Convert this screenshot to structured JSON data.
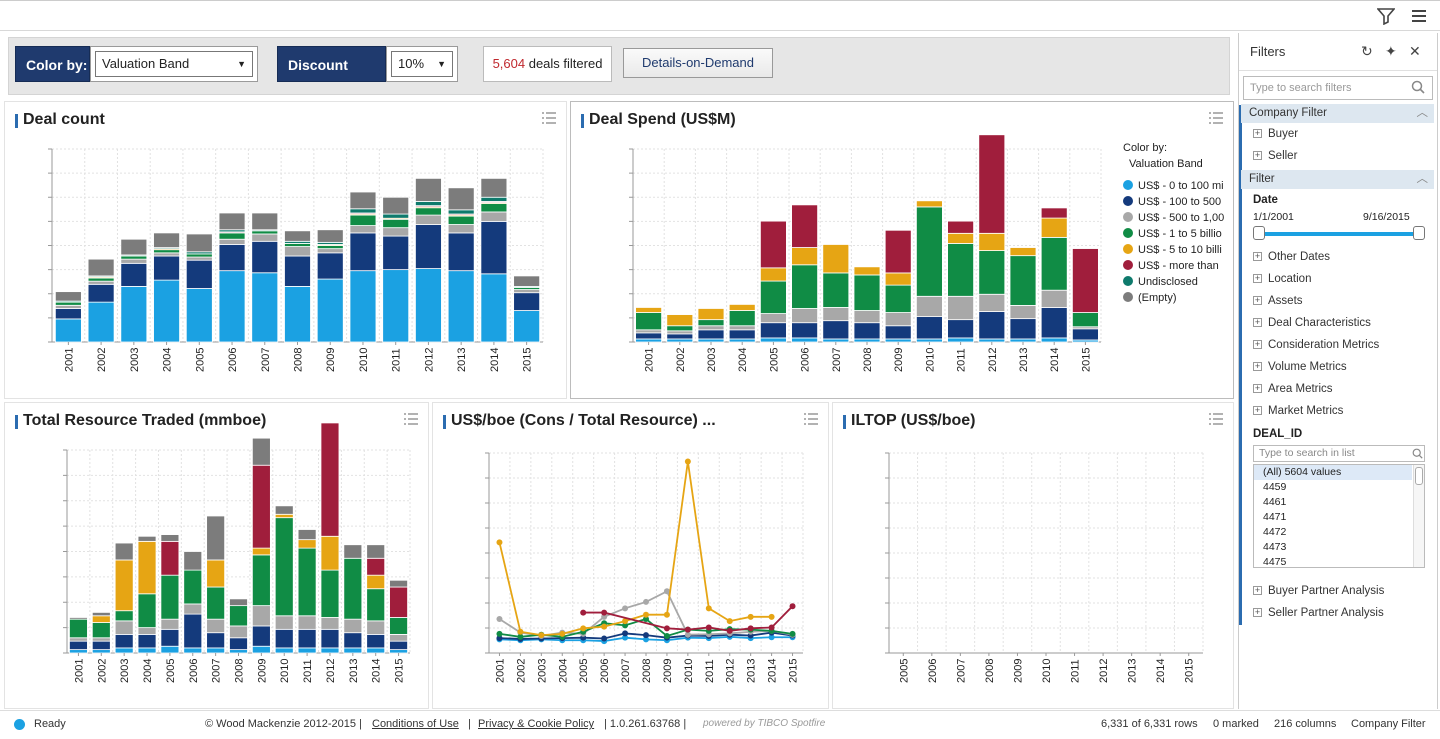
{
  "toolbar": {
    "filter_icon": "funnel-icon",
    "menu_icon": "hamburger-icon"
  },
  "controls": {
    "color_by_label": "Color by:",
    "color_by_value": "Valuation Band",
    "discount_label": "Discount Rate:",
    "discount_value": "10%",
    "deals_count": "5,604",
    "deals_text": " deals filtered",
    "details_button": "Details-on-Demand"
  },
  "colors": {
    "band0": "#1ba1e2",
    "band1": "#143a7c",
    "band2": "#a8a8a8",
    "band3": "#108c45",
    "band4": "#e6a514",
    "band5": "#a01e3c",
    "band6": "#0e7a6c",
    "band7": "#7c7c7c"
  },
  "panels": {
    "deal_count": {
      "title": "Deal count"
    },
    "deal_spend": {
      "title": "Deal Spend (US$M)"
    },
    "resource": {
      "title": "Total Resource Traded (mmboe)"
    },
    "usboe": {
      "title": "US$/boe (Cons / Total Resource) ..."
    },
    "iltop": {
      "title": "ILTOP (US$/boe)"
    }
  },
  "legend": {
    "title": "Color by:",
    "subtitle": "Valuation Band",
    "items": [
      "US$ - 0 to 100 mi",
      "US$ - 100 to 500",
      "US$ - 500 to 1,00",
      "US$ - 1 to 5 billio",
      "US$ - 5 to 10 billi",
      "US$ - more than",
      "Undisclosed",
      "(Empty)"
    ]
  },
  "chart_data": [
    {
      "type": "bar",
      "title": "Deal count",
      "stacked": true,
      "categories": [
        "2001",
        "2002",
        "2003",
        "2004",
        "2005",
        "2006",
        "2007",
        "2008",
        "2009",
        "2010",
        "2011",
        "2012",
        "2013",
        "2014",
        "2015"
      ],
      "series": [
        {
          "name": "US$ - 0 to 100 mi",
          "values": [
            22,
            38,
            53,
            59,
            51,
            68,
            66,
            53,
            60,
            68,
            69,
            70,
            68,
            65,
            30
          ]
        },
        {
          "name": "US$ - 100 to 500",
          "values": [
            10,
            17,
            22,
            23,
            27,
            25,
            30,
            29,
            25,
            36,
            32,
            42,
            36,
            50,
            17
          ]
        },
        {
          "name": "US$ - 500 to 1,00",
          "values": [
            3,
            3,
            4,
            3,
            3,
            5,
            7,
            9,
            4,
            7,
            8,
            9,
            8,
            9,
            3
          ]
        },
        {
          "name": "US$ - 1 to 5 billio",
          "values": [
            3,
            3,
            3,
            3,
            3,
            6,
            3,
            3,
            3,
            10,
            8,
            7,
            8,
            8,
            2
          ]
        },
        {
          "name": "US$ - 5 to 10 billi",
          "values": [
            0,
            1,
            0,
            1,
            0,
            0,
            0,
            0,
            1,
            1,
            1,
            1,
            1,
            1,
            0
          ]
        },
        {
          "name": "US$ - more than",
          "values": [
            0,
            0,
            0,
            0,
            0,
            1,
            0,
            0,
            0,
            1,
            0,
            1,
            1,
            1,
            0
          ]
        },
        {
          "name": "Undisclosed",
          "values": [
            1,
            1,
            1,
            1,
            2,
            2,
            1,
            2,
            2,
            4,
            4,
            4,
            4,
            4,
            1
          ]
        },
        {
          "name": "(Empty)",
          "values": [
            9,
            16,
            15,
            14,
            17,
            16,
            16,
            10,
            12,
            16,
            16,
            22,
            21,
            18,
            10
          ]
        }
      ]
    },
    {
      "type": "bar",
      "title": "Deal Spend (US$M)",
      "stacked": true,
      "categories": [
        "2001",
        "2002",
        "2003",
        "2004",
        "2005",
        "2006",
        "2007",
        "2008",
        "2009",
        "2010",
        "2011",
        "2012",
        "2013",
        "2014",
        "2015"
      ],
      "series": [
        {
          "name": "US$ - 0 to 100 mi",
          "values": [
            3,
            3,
            3,
            3,
            4,
            4,
            3,
            3,
            3,
            3,
            4,
            3,
            3,
            4,
            2
          ]
        },
        {
          "name": "US$ - 100 to 500",
          "values": [
            6,
            5,
            9,
            9,
            15,
            15,
            18,
            16,
            13,
            22,
            18,
            27,
            20,
            30,
            11
          ]
        },
        {
          "name": "US$ - 500 to 1,00",
          "values": [
            3,
            3,
            4,
            4,
            9,
            14,
            13,
            12,
            13,
            20,
            23,
            17,
            13,
            17,
            2
          ]
        },
        {
          "name": "US$ - 1 to 5 billio",
          "values": [
            17,
            5,
            6,
            15,
            32,
            43,
            34,
            35,
            27,
            88,
            52,
            43,
            49,
            52,
            14
          ]
        },
        {
          "name": "US$ - 5 to 10 billi",
          "values": [
            5,
            11,
            11,
            6,
            13,
            17,
            28,
            8,
            12,
            6,
            10,
            17,
            8,
            19,
            0
          ]
        },
        {
          "name": "US$ - more than",
          "values": [
            0,
            0,
            0,
            0,
            46,
            42,
            0,
            0,
            42,
            0,
            12,
            97,
            0,
            10,
            63
          ]
        },
        {
          "name": "Undisclosed",
          "values": [
            0,
            0,
            0,
            0,
            0,
            0,
            0,
            0,
            0,
            0,
            0,
            0,
            0,
            0,
            0
          ]
        },
        {
          "name": "(Empty)",
          "values": [
            0,
            0,
            0,
            0,
            0,
            0,
            0,
            0,
            0,
            0,
            0,
            0,
            0,
            0,
            0
          ]
        }
      ]
    },
    {
      "type": "bar",
      "title": "Total Resource Traded (mmboe)",
      "stacked": true,
      "categories": [
        "2001",
        "2002",
        "2003",
        "2004",
        "2005",
        "2006",
        "2007",
        "2008",
        "2009",
        "2010",
        "2011",
        "2012",
        "2013",
        "2014",
        "2015"
      ],
      "series": [
        {
          "name": "US$ - 0 to 100 mi",
          "values": [
            2,
            2,
            3,
            3,
            4,
            3,
            3,
            2,
            4,
            3,
            3,
            3,
            3,
            3,
            2
          ]
        },
        {
          "name": "US$ - 100 to 500",
          "values": [
            5,
            5,
            8,
            8,
            10,
            20,
            9,
            7,
            12,
            11,
            11,
            11,
            9,
            8,
            5
          ]
        },
        {
          "name": "US$ - 500 to 1,00",
          "values": [
            2,
            2,
            8,
            4,
            6,
            6,
            8,
            7,
            12,
            8,
            8,
            7,
            8,
            8,
            4
          ]
        },
        {
          "name": "US$ - 1 to 5 billio",
          "values": [
            11,
            9,
            6,
            20,
            26,
            20,
            19,
            12,
            30,
            58,
            40,
            28,
            36,
            19,
            10
          ]
        },
        {
          "name": "US$ - 5 to 10 billi",
          "values": [
            0,
            4,
            30,
            31,
            0,
            0,
            16,
            0,
            4,
            2,
            5,
            20,
            0,
            8,
            0
          ]
        },
        {
          "name": "US$ - more than",
          "values": [
            0,
            0,
            0,
            0,
            20,
            0,
            0,
            0,
            49,
            0,
            0,
            67,
            0,
            10,
            18
          ]
        },
        {
          "name": "Undisclosed",
          "values": [
            0,
            0,
            0,
            0,
            0,
            0,
            0,
            0,
            0,
            0,
            0,
            0,
            0,
            0,
            0
          ]
        },
        {
          "name": "(Empty)",
          "values": [
            1,
            2,
            10,
            3,
            4,
            11,
            26,
            4,
            16,
            5,
            6,
            0,
            8,
            8,
            4
          ]
        }
      ]
    },
    {
      "type": "line",
      "title": "US$/boe (Cons / Total Resource) ...",
      "x": [
        "2001",
        "2002",
        "2003",
        "2004",
        "2005",
        "2006",
        "2007",
        "2008",
        "2009",
        "2010",
        "2011",
        "2012",
        "2013",
        "2014",
        "2015"
      ],
      "series": [
        {
          "name": "US$ - 0 to 100 mi",
          "values": [
            3.2,
            3.0,
            3.2,
            3.0,
            3.0,
            2.8,
            3.6,
            3.2,
            3.0,
            3.6,
            3.5,
            3.8,
            3.5,
            3.7,
            3.7
          ]
        },
        {
          "name": "US$ - 100 to 500",
          "values": [
            3.5,
            3.3,
            3.4,
            3.5,
            3.6,
            3.4,
            4.6,
            4.2,
            3.6,
            4.1,
            4.0,
            4.3,
            4.1,
            4.8,
            4.1
          ]
        },
        {
          "name": "US$ - 500 to 1,00",
          "values": [
            8.0,
            4.8,
            4.0,
            4.8,
            4.5,
            8.5,
            10.5,
            12.0,
            14.5,
            4.3,
            4.4,
            4.6,
            5.0,
            5.2,
            4.3
          ]
        },
        {
          "name": "US$ - 1 to 5 billio",
          "values": [
            4.5,
            3.8,
            4.3,
            3.8,
            5.0,
            7.0,
            6.5,
            8.0,
            4.0,
            5.5,
            5.2,
            5.6,
            5.5,
            5.2,
            4.5
          ]
        },
        {
          "name": "US$ - 5 to 10 billi",
          "values": [
            26.0,
            5.0,
            4.2,
            4.5,
            5.8,
            6.2,
            7.5,
            9.0,
            9.0,
            45.0,
            10.5,
            7.5,
            8.5,
            8.5,
            0
          ]
        },
        {
          "name": "US$ - more than",
          "values": [
            0,
            0,
            0,
            0,
            9.5,
            9.5,
            0,
            0,
            5.8,
            5.5,
            6.0,
            5.2,
            5.8,
            6.0,
            11.0
          ]
        }
      ]
    },
    {
      "type": "line",
      "title": "ILTOP (US$/boe)",
      "x": [
        "2005",
        "2006",
        "2007",
        "2008",
        "2009",
        "2010",
        "2011",
        "2012",
        "2013",
        "2014",
        "2015"
      ],
      "series": [
        {
          "name": "US$ - 0 to 100 mi",
          "values": [
            0,
            0,
            0,
            0,
            0,
            0,
            0,
            0,
            0,
            0,
            0
          ]
        },
        {
          "name": "US$ - 100 to 500",
          "values": [
            0,
            0,
            0,
            0,
            0,
            0,
            0,
            0,
            0,
            0,
            0
          ]
        },
        {
          "name": "US$ - 500 to 1,00",
          "values": [
            0,
            0,
            0,
            0,
            0,
            0,
            0,
            0,
            0,
            0,
            0
          ]
        },
        {
          "name": "US$ - 1 to 5 billio",
          "values": [
            0,
            0,
            0,
            0,
            0,
            0,
            0,
            0,
            0,
            0,
            0
          ]
        },
        {
          "name": "US$ - 5 to 10 billi",
          "values": [
            0,
            0,
            0,
            0,
            0,
            0,
            0,
            0,
            0,
            0,
            0
          ]
        },
        {
          "name": "US$ - more than",
          "values": [
            0,
            0,
            0,
            0,
            0,
            0,
            0,
            0,
            0,
            0,
            0
          ]
        }
      ]
    }
  ],
  "filters": {
    "title": "Filters",
    "search_placeholder": "Type to search filters",
    "company_filter": "Company Filter",
    "buyer": "Buyer",
    "seller": "Seller",
    "filter_section": "Filter",
    "date_label": "Date",
    "date_start": "1/1/2001",
    "date_end": "9/16/2015",
    "groups": [
      "Other Dates",
      "Location",
      "Assets",
      "Deal Characteristics",
      "Consideration Metrics",
      "Volume Metrics",
      "Area Metrics",
      "Market Metrics"
    ],
    "deal_id_label": "DEAL_ID",
    "list_placeholder": "Type to search in list",
    "list_items": [
      "(All) 5604 values",
      "4459",
      "4461",
      "4471",
      "4472",
      "4473",
      "4475"
    ],
    "bottom_groups": [
      "Buyer Partner Analysis",
      "Seller Partner Analysis"
    ]
  },
  "status": {
    "ready": "Ready",
    "copyright": "© Wood Mackenzie 2012-2015 |",
    "conditions": "Conditions of Use",
    "sep1": "|",
    "privacy": "Privacy & Cookie Policy",
    "version": "| 1.0.261.63768 |",
    "powered": "powered by TIBCO Spotfire",
    "rows": "6,331 of 6,331 rows",
    "marked": "0 marked",
    "columns": "216 columns",
    "company": "Company Filter"
  }
}
